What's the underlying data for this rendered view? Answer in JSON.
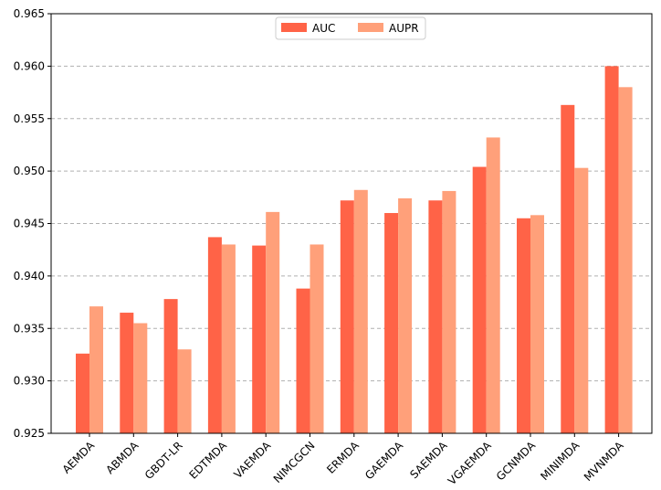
{
  "chart_data": {
    "type": "bar",
    "categories": [
      "AEMDA",
      "ABMDA",
      "GBDT-LR",
      "EDTMDA",
      "VAEMDA",
      "NIMCGCN",
      "ERMDA",
      "GAEMDA",
      "SAEMDA",
      "VGAEMDA",
      "GCNMDA",
      "MINIMDA",
      "MVNMDA"
    ],
    "series": [
      {
        "name": "AUC",
        "color": "#ff6347",
        "values": [
          0.9326,
          0.9365,
          0.9378,
          0.9437,
          0.9429,
          0.9388,
          0.9472,
          0.946,
          0.9472,
          0.9504,
          0.9455,
          0.9563,
          0.96
        ]
      },
      {
        "name": "AUPR",
        "color": "#ffa07a",
        "values": [
          0.9371,
          0.9355,
          0.933,
          0.943,
          0.9461,
          0.943,
          0.9482,
          0.9474,
          0.9481,
          0.9532,
          0.9458,
          0.9503,
          0.958
        ]
      }
    ],
    "ylim": [
      0.925,
      0.965
    ],
    "yticks": [
      "0.925",
      "0.930",
      "0.935",
      "0.940",
      "0.945",
      "0.950",
      "0.955",
      "0.960",
      "0.965"
    ],
    "grid": "y-dashed",
    "legend": "top-center",
    "title": "",
    "xlabel": "",
    "ylabel": ""
  }
}
